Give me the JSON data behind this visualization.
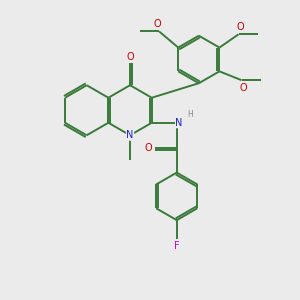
{
  "bg_color": "#ebebeb",
  "bond_color": "#3a7a3a",
  "bond_width": 1.4,
  "atom_colors": {
    "N": "#2020cc",
    "O": "#cc0000",
    "F": "#cc00cc",
    "H": "#888888",
    "C": "#3a7a3a"
  },
  "font_size": 7.0
}
